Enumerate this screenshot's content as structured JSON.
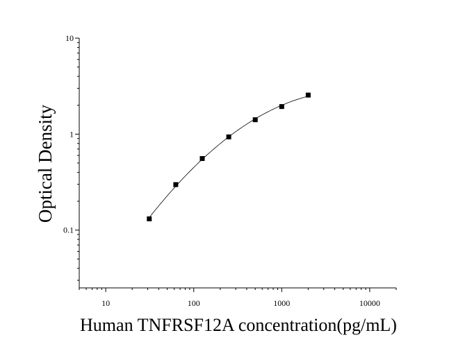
{
  "chart_data": {
    "type": "scatter",
    "title": "",
    "xlabel": "Human TNFRSF12A concentration(pg/mL)",
    "ylabel": "Optical Density",
    "xscale": "log",
    "yscale": "log",
    "xlim": [
      5,
      20000
    ],
    "ylim": [
      0.025,
      10
    ],
    "x_ticks": [
      10,
      100,
      1000,
      10000
    ],
    "x_tick_labels": [
      "10",
      "100",
      "1000",
      "10000"
    ],
    "y_ticks": [
      0.1,
      1,
      10
    ],
    "y_tick_labels": [
      "0.1",
      "1",
      "10"
    ],
    "grid": false,
    "legend": "none",
    "marker": "square",
    "fit_curve": true,
    "color": "#000000",
    "series": [
      {
        "x": [
          31.25,
          62.5,
          125,
          250,
          500,
          1000,
          2000
        ],
        "y": [
          0.131,
          0.298,
          0.557,
          0.936,
          1.412,
          1.938,
          2.552
        ]
      }
    ]
  }
}
